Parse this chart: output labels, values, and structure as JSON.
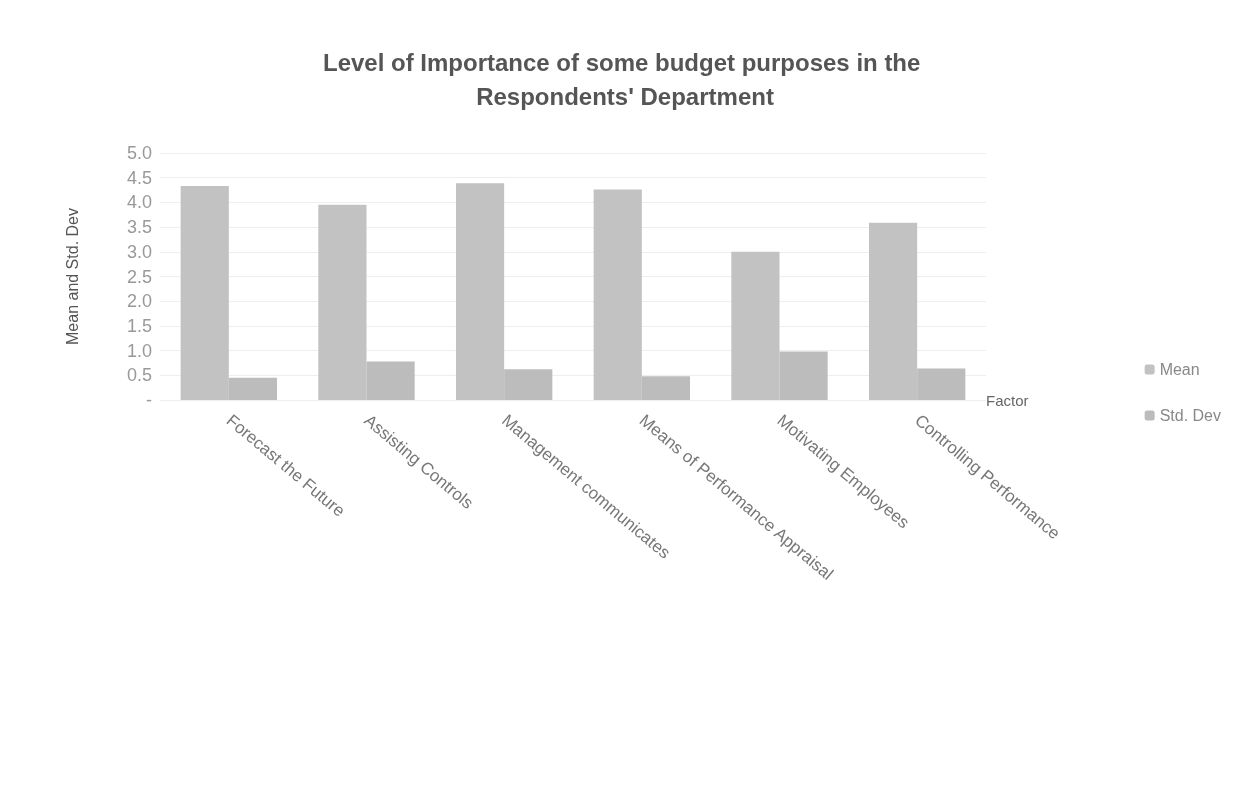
{
  "chart_data": {
    "type": "bar",
    "title": "Level of Importance of some budget purposes in the Respondents' Department",
    "xlabel": "Factor",
    "ylabel": "Mean and Std. Dev",
    "categories": [
      "Forecast the Future",
      "Assisting Controls",
      "Management communicates",
      "Means of Performance Appraisal",
      "Motivating Employees",
      "Controlling Performance"
    ],
    "series": [
      {
        "name": "Mean",
        "color": "#c2c2c2",
        "values": [
          4.33,
          3.95,
          4.39,
          4.26,
          3.0,
          3.59
        ]
      },
      {
        "name": "Std. Dev",
        "color": "#bcbcbc",
        "values": [
          0.45,
          0.78,
          0.62,
          0.48,
          0.98,
          0.64
        ]
      }
    ],
    "ylim": [
      0,
      5
    ],
    "yticks": [
      {
        "value": 0,
        "label": "-"
      },
      {
        "value": 0.5,
        "label": "0.5"
      },
      {
        "value": 1,
        "label": "1.0"
      },
      {
        "value": 1.5,
        "label": "1.5"
      },
      {
        "value": 2,
        "label": "2.0"
      },
      {
        "value": 2.5,
        "label": "2.5"
      },
      {
        "value": 3,
        "label": "3.0"
      },
      {
        "value": 3.5,
        "label": "3.5"
      },
      {
        "value": 4,
        "label": "4.0"
      },
      {
        "value": 4.5,
        "label": "4.5"
      },
      {
        "value": 5,
        "label": "5.0"
      }
    ],
    "grid": "y",
    "legend": "right"
  }
}
